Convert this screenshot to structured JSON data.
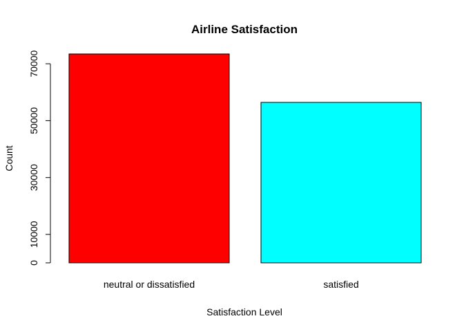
{
  "chart_data": {
    "type": "bar",
    "title": "Airline Satisfaction",
    "xlabel": "Satisfaction Level",
    "ylabel": "Count",
    "categories": [
      "neutral or dissatisfied",
      "satisfied"
    ],
    "values": [
      73452,
      56428
    ],
    "colors": [
      "#FF0000",
      "#00FFFF"
    ],
    "ylim": [
      0,
      73452
    ],
    "yticks": [
      0,
      10000,
      30000,
      50000,
      70000
    ],
    "ytick_labels": [
      "0",
      "10000",
      "30000",
      "50000",
      "70000"
    ],
    "grid": false,
    "legend": "none"
  }
}
